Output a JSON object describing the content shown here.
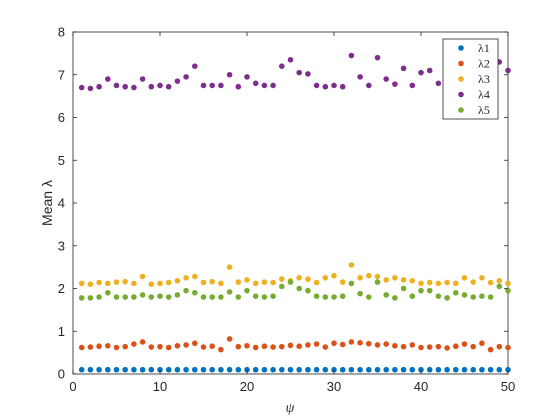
{
  "chart_data": {
    "type": "scatter",
    "xlabel": "ψ",
    "ylabel": "Mean λ",
    "xlim": [
      0,
      50
    ],
    "ylim": [
      0,
      8
    ],
    "xticks": [
      0,
      10,
      20,
      30,
      40,
      50
    ],
    "yticks": [
      0,
      1,
      2,
      3,
      4,
      5,
      6,
      7,
      8
    ],
    "legend_position": "top-right",
    "x": [
      1,
      2,
      3,
      4,
      5,
      6,
      7,
      8,
      9,
      10,
      11,
      12,
      13,
      14,
      15,
      16,
      17,
      18,
      19,
      20,
      21,
      22,
      23,
      24,
      25,
      26,
      27,
      28,
      29,
      30,
      31,
      32,
      33,
      34,
      35,
      36,
      37,
      38,
      39,
      40,
      41,
      42,
      43,
      44,
      45,
      46,
      47,
      48,
      49,
      50
    ],
    "series": [
      {
        "name": "λ1",
        "color": "#0072BD",
        "values": [
          0.1,
          0.1,
          0.1,
          0.1,
          0.1,
          0.1,
          0.1,
          0.1,
          0.1,
          0.1,
          0.1,
          0.1,
          0.1,
          0.1,
          0.1,
          0.1,
          0.1,
          0.1,
          0.1,
          0.1,
          0.1,
          0.1,
          0.1,
          0.1,
          0.1,
          0.1,
          0.1,
          0.1,
          0.1,
          0.1,
          0.1,
          0.1,
          0.1,
          0.1,
          0.1,
          0.1,
          0.1,
          0.1,
          0.1,
          0.1,
          0.1,
          0.1,
          0.1,
          0.1,
          0.1,
          0.1,
          0.1,
          0.1,
          0.1,
          0.1
        ]
      },
      {
        "name": "λ2",
        "color": "#D95319",
        "values": [
          0.62,
          0.63,
          0.65,
          0.66,
          0.62,
          0.64,
          0.7,
          0.75,
          0.63,
          0.64,
          0.62,
          0.66,
          0.68,
          0.72,
          0.63,
          0.65,
          0.57,
          0.82,
          0.64,
          0.66,
          0.62,
          0.65,
          0.63,
          0.64,
          0.67,
          0.65,
          0.68,
          0.7,
          0.63,
          0.72,
          0.69,
          0.75,
          0.73,
          0.71,
          0.68,
          0.7,
          0.66,
          0.64,
          0.68,
          0.62,
          0.63,
          0.64,
          0.61,
          0.65,
          0.7,
          0.64,
          0.72,
          0.57,
          0.64,
          0.62
        ]
      },
      {
        "name": "λ3",
        "color": "#EDB120",
        "values": [
          2.12,
          2.1,
          2.14,
          2.12,
          2.15,
          2.16,
          2.12,
          2.28,
          2.1,
          2.12,
          2.14,
          2.18,
          2.25,
          2.28,
          2.14,
          2.16,
          2.12,
          2.5,
          2.15,
          2.2,
          2.12,
          2.15,
          2.14,
          2.22,
          2.18,
          2.25,
          2.22,
          2.14,
          2.25,
          2.3,
          2.15,
          2.55,
          2.25,
          2.3,
          2.28,
          2.2,
          2.25,
          2.2,
          2.18,
          2.12,
          2.14,
          2.12,
          2.14,
          2.12,
          2.25,
          2.15,
          2.25,
          2.14,
          2.18,
          2.12
        ]
      },
      {
        "name": "λ4",
        "color": "#7E2F8E",
        "values": [
          6.7,
          6.68,
          6.72,
          6.9,
          6.75,
          6.72,
          6.7,
          6.9,
          6.72,
          6.75,
          6.72,
          6.85,
          6.95,
          7.2,
          6.75,
          6.75,
          6.75,
          7.0,
          6.72,
          6.95,
          6.8,
          6.75,
          6.75,
          7.2,
          7.35,
          7.05,
          7.02,
          6.75,
          6.72,
          6.75,
          6.72,
          7.45,
          6.95,
          6.75,
          7.4,
          6.9,
          6.78,
          7.15,
          6.75,
          7.05,
          7.1,
          6.8,
          7.0,
          6.95,
          7.05,
          6.75,
          7.0,
          7.0,
          7.3,
          7.1
        ]
      },
      {
        "name": "λ5",
        "color": "#77AC30",
        "values": [
          1.78,
          1.78,
          1.8,
          1.9,
          1.8,
          1.8,
          1.8,
          1.85,
          1.8,
          1.82,
          1.8,
          1.85,
          1.95,
          1.9,
          1.8,
          1.8,
          1.8,
          1.92,
          1.8,
          1.95,
          1.82,
          1.8,
          1.82,
          2.05,
          2.15,
          2.0,
          1.95,
          1.82,
          1.8,
          1.8,
          1.82,
          2.12,
          1.88,
          1.8,
          2.15,
          1.85,
          1.78,
          2.0,
          1.82,
          1.95,
          1.95,
          1.82,
          1.78,
          1.9,
          1.85,
          1.8,
          1.82,
          1.8,
          2.05,
          1.95
        ]
      }
    ]
  }
}
